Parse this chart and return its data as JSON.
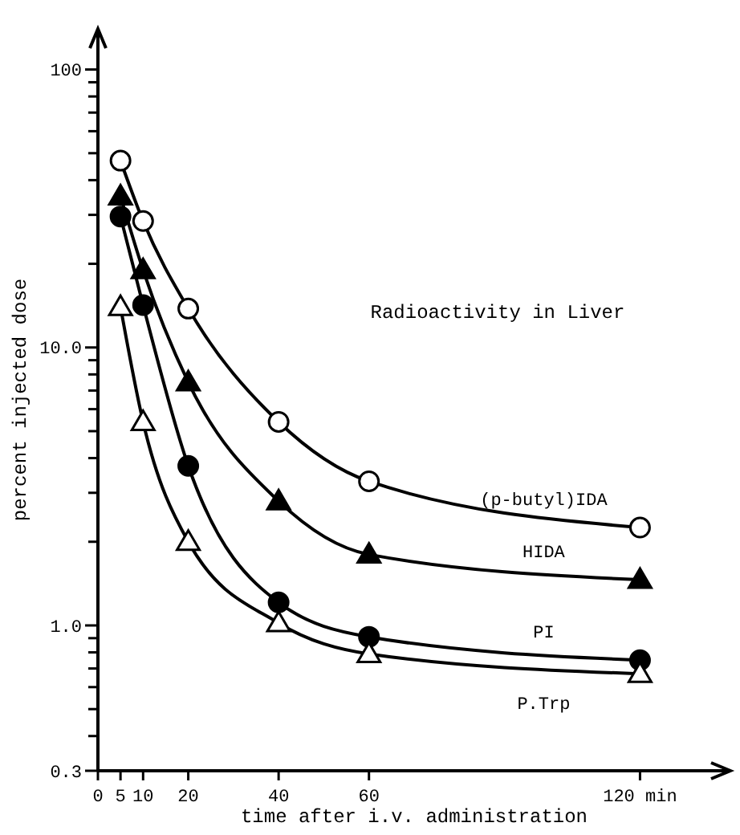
{
  "chart_data": {
    "type": "line",
    "title": "Radioactivity in Liver",
    "xlabel": "time after i.v. administration",
    "ylabel": "percent injected dose",
    "x": [
      5,
      10,
      20,
      40,
      60,
      120
    ],
    "series": [
      {
        "name": "(p-butyl)IDA",
        "color": "#000000",
        "marker": "circle",
        "values": [
          47,
          28.5,
          13.8,
          5.4,
          3.3,
          2.25
        ]
      },
      {
        "name": "HIDA",
        "color": "#000000",
        "marker": "triangle",
        "values": [
          35,
          19,
          7.5,
          2.8,
          1.8,
          1.46
        ]
      },
      {
        "name": "PI",
        "color": "#000000",
        "marker": "circle",
        "values": [
          29.6,
          14.2,
          3.75,
          1.21,
          0.91,
          0.75
        ]
      },
      {
        "name": "P.Trp",
        "color": "#000000",
        "marker": "triangle",
        "values": [
          14,
          5.4,
          2.0,
          1.02,
          0.79,
          0.67
        ]
      }
    ],
    "log": "y",
    "grid": false,
    "line_style": "solid",
    "xlim": [
      0,
      140
    ],
    "ylim": [
      0.3,
      140
    ],
    "xticks": [
      0,
      5,
      10,
      20,
      40,
      60,
      {
        "value": 120,
        "label": "120 min"
      }
    ],
    "yticks": [
      0.3,
      {
        "value": 0.4,
        "label": null
      },
      {
        "value": 0.5,
        "label": null
      },
      {
        "value": 0.6,
        "label": null
      },
      {
        "value": 0.7,
        "label": null
      },
      {
        "value": 0.8,
        "label": null
      },
      {
        "value": 0.9,
        "label": null
      },
      {
        "value": 1,
        "label": "1.0"
      },
      {
        "value": 2,
        "label": null
      },
      {
        "value": 3,
        "label": null
      },
      {
        "value": 4,
        "label": null
      },
      {
        "value": 5,
        "label": null
      },
      {
        "value": 6,
        "label": null
      },
      {
        "value": 7,
        "label": null
      },
      {
        "value": 8,
        "label": null
      },
      {
        "value": 9,
        "label": null
      },
      {
        "value": 10,
        "label": "10.0"
      },
      {
        "value": 20,
        "label": null
      },
      {
        "value": 30,
        "label": null
      },
      {
        "value": 40,
        "label": null
      },
      {
        "value": 50,
        "label": null
      },
      {
        "value": 60,
        "label": null
      },
      {
        "value": 70,
        "label": null
      },
      {
        "value": 80,
        "label": null
      },
      {
        "value": 90,
        "label": null
      },
      {
        "value": 100,
        "label": "100"
      }
    ]
  }
}
